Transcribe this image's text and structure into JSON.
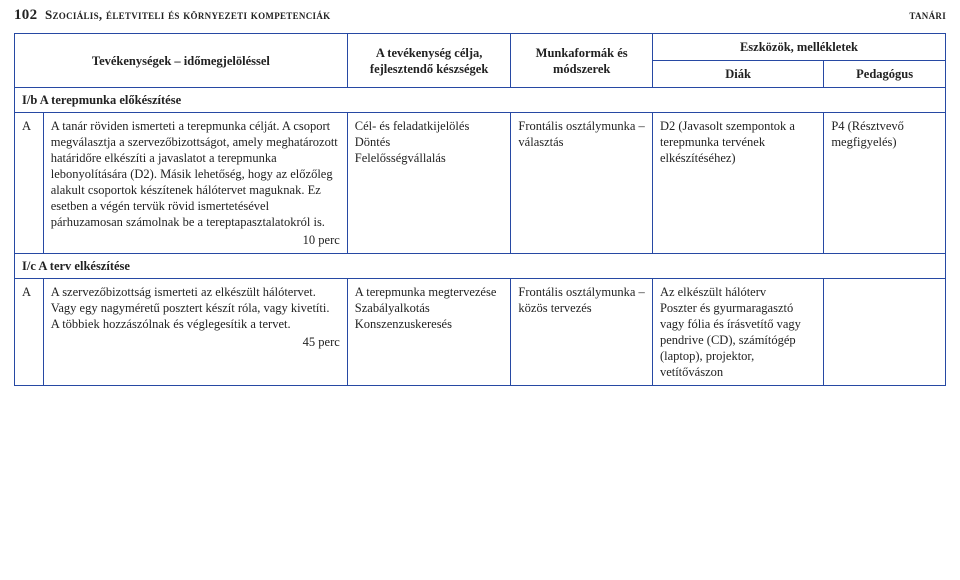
{
  "header": {
    "page_number": "102",
    "left_title": "Szociális, életviteli és környezeti kompetenciák",
    "right_title": "tanári"
  },
  "table": {
    "head": {
      "col1": "Tevékenységek – időmegjelöléssel",
      "col2": "A tevékenység célja, fejlesztendő készségek",
      "col3": "Munkaformák és módszerek",
      "tools_group": "Eszközök, mellékletek",
      "diak": "Diák",
      "ped": "Pedagógus"
    },
    "sections": {
      "s1": "I/b A terepmunka előkészítése",
      "s2": "I/c A terv elkészítése"
    },
    "rows": {
      "r1": {
        "mark": "A",
        "activity": "A tanár röviden ismerteti a terepmunka célját. A csoport megválasztja a szervezőbizottságot, amely meghatározott határidőre elkészíti a javaslatot a terepmunka lebonyolítására (D2). Másik lehetőség, hogy az előzőleg alakult csoportok készítenek hálótervet maguknak. Ez esetben a végén tervük rövid ismertetésével párhuzamosan számolnak be a tereptapasztalatokról is.",
        "time": "10 perc",
        "goal": "Cél- és feladatkijelölés\nDöntés\nFelelősségvállalás",
        "mod": "Frontális osztálymunka – választás",
        "diak": "D2 (Javasolt szempontok a terepmunka tervének elkészítéséhez)",
        "ped": "P4 (Résztvevő megfigyelés)"
      },
      "r2": {
        "mark": "A",
        "activity": "A szervezőbizottság ismerteti az elkészült hálótervet. Vagy egy nagyméretű posztert készít róla, vagy kivetíti. A többiek hozzászólnak és véglegesítik a tervet.",
        "time": "45 perc",
        "goal": "A terepmunka megtervezése\nSzabályalkotás\nKonszenzuskeresés",
        "mod": "Frontális osztálymunka – közös tervezés",
        "diak": "Az elkészült hálóterv\nPoszter és gyurmaragasztó vagy fólia és írásvetítő vagy\npendrive (CD), számítógép (laptop), projektor, vetítővászon",
        "ped": ""
      }
    }
  }
}
